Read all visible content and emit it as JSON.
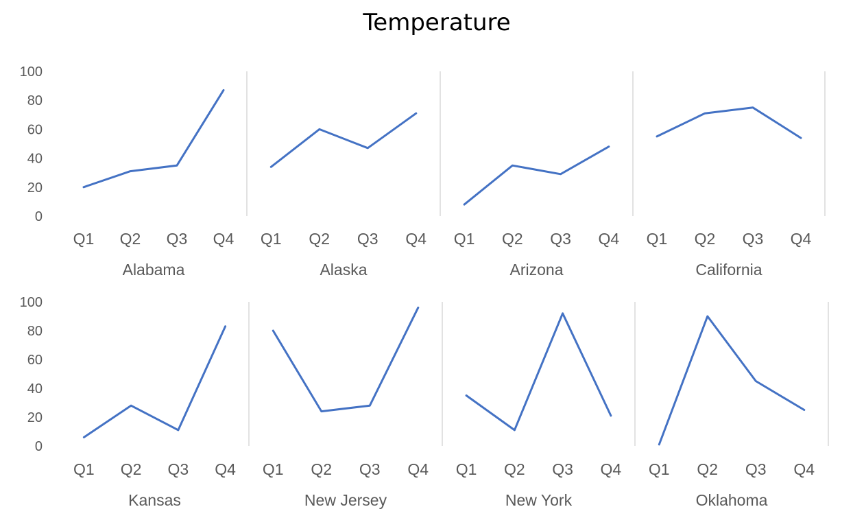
{
  "chart_data": {
    "type": "line",
    "title": "Temperature",
    "categories": [
      "Q1",
      "Q2",
      "Q3",
      "Q4"
    ],
    "ylim": [
      0,
      100
    ],
    "yticks": [
      0,
      20,
      40,
      60,
      80,
      100
    ],
    "grid": false,
    "line_color": "#4472C4",
    "separator_color": "#D9D9D9",
    "series": [
      {
        "name": "Alabama",
        "values": [
          20,
          31,
          35,
          87
        ]
      },
      {
        "name": "Alaska",
        "values": [
          34,
          60,
          47,
          71
        ]
      },
      {
        "name": "Arizona",
        "values": [
          8,
          35,
          29,
          48
        ]
      },
      {
        "name": "California",
        "values": [
          55,
          71,
          75,
          54
        ]
      },
      {
        "name": "Kansas",
        "values": [
          6,
          28,
          11,
          83
        ]
      },
      {
        "name": "New Jersey",
        "values": [
          80,
          24,
          28,
          96
        ]
      },
      {
        "name": "New York",
        "values": [
          35,
          11,
          92,
          21
        ]
      },
      {
        "name": "Oklahoma",
        "values": [
          1,
          90,
          45,
          25
        ]
      }
    ]
  }
}
